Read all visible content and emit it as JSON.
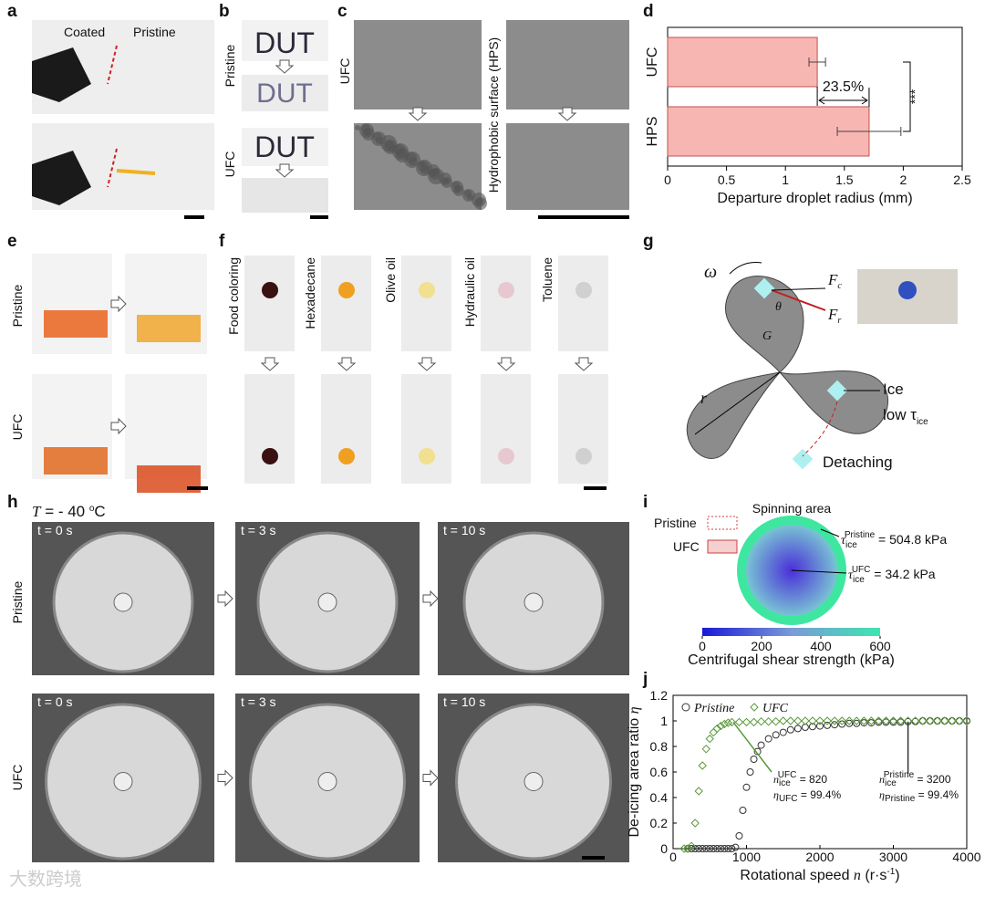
{
  "panel_labels": [
    "a",
    "b",
    "c",
    "d",
    "e",
    "f",
    "g",
    "h",
    "i",
    "j"
  ],
  "a": {
    "coated": "Coated",
    "pristine": "Pristine"
  },
  "b": {
    "rows": [
      "Pristine",
      "UFC"
    ],
    "text": "DUT"
  },
  "c": {
    "left": "UFC",
    "right": "Hydrophobic surface (HPS)"
  },
  "e": {
    "rows": [
      "Pristine",
      "UFC"
    ]
  },
  "f": {
    "liquids": [
      "Food coloring",
      "Hexadecane",
      "Olive oil",
      "Hydraulic oil",
      "Toluene"
    ]
  },
  "g": {
    "omega": "ω",
    "fc": [
      "F",
      "c"
    ],
    "fr": [
      "F",
      "r"
    ],
    "theta": "θ",
    "g": "G",
    "r": "r",
    "ice": "Ice",
    "low": [
      "low τ",
      "ice"
    ],
    "detaching": "Detaching"
  },
  "h": {
    "temperature": [
      "T",
      " = - 40 ",
      "o",
      "C"
    ],
    "rows": [
      "Pristine",
      "UFC"
    ],
    "times": [
      "t = 0 s",
      "t = 3 s",
      "t = 10 s"
    ]
  },
  "i": {
    "title": "Spinning area",
    "legend": [
      "Pristine",
      "UFC"
    ],
    "tau_pristine": [
      "τ",
      "ice",
      "Pristine",
      " = 504.8 kPa"
    ],
    "tau_ufc": [
      "τ",
      "ice",
      "UFC",
      " = 34.2 kPa"
    ]
  },
  "watermark": "大数跨境",
  "chart_data": [
    {
      "type": "bar",
      "orientation": "horizontal",
      "categories": [
        "UFC",
        "HPS"
      ],
      "values": [
        1.27,
        1.71
      ],
      "errors": [
        0.07,
        0.27
      ],
      "color": "#f8b6b3",
      "edge_color": "#c0504d",
      "xlim": [
        0,
        2.5
      ],
      "xticks": [
        0,
        0.5,
        1,
        1.5,
        2,
        2.5
      ],
      "xlabel": "Departure droplet radius (mm)",
      "annotations": [
        "23.5%",
        "***"
      ]
    },
    {
      "type": "colorbar",
      "xlim": [
        0,
        600
      ],
      "xticks": [
        0,
        200,
        400,
        600
      ],
      "xlabel": "Centrifugal shear strength (kPa)",
      "colors": [
        "#1a1ad6",
        "#7a9ad8",
        "#3ee6b0"
      ]
    },
    {
      "type": "scatter",
      "xlabel": [
        "Rotational speed ",
        "n",
        " (r·s",
        "-1",
        ")"
      ],
      "ylabel": [
        "De-icing area ratio ",
        "η"
      ],
      "xlim": [
        0,
        4000
      ],
      "xticks": [
        0,
        1000,
        2000,
        3000,
        4000
      ],
      "ylim": [
        0,
        1.2
      ],
      "yticks": [
        0,
        0.2,
        0.4,
        0.6,
        0.8,
        1,
        1.2
      ],
      "series": [
        {
          "name": "Pristine",
          "marker": "circle",
          "color": "#333333",
          "x": [
            200,
            250,
            300,
            350,
            400,
            450,
            500,
            550,
            600,
            650,
            700,
            750,
            800,
            850,
            900,
            950,
            1000,
            1050,
            1100,
            1150,
            1200,
            1300,
            1400,
            1500,
            1600,
            1700,
            1800,
            1900,
            2000,
            2100,
            2200,
            2300,
            2400,
            2500,
            2600,
            2700,
            2800,
            2900,
            3000,
            3100,
            3200,
            3300,
            3400,
            3500,
            3600,
            3700,
            3800,
            3900,
            4000
          ],
          "values": [
            0,
            0,
            0,
            0,
            0,
            0,
            0,
            0,
            0,
            0,
            0,
            0,
            0,
            0.01,
            0.1,
            0.3,
            0.48,
            0.6,
            0.7,
            0.76,
            0.81,
            0.86,
            0.89,
            0.91,
            0.93,
            0.94,
            0.95,
            0.955,
            0.96,
            0.965,
            0.97,
            0.975,
            0.98,
            0.98,
            0.985,
            0.985,
            0.99,
            0.99,
            0.99,
            0.99,
            0.994,
            0.995,
            1,
            1,
            1,
            1,
            1,
            1,
            1
          ]
        },
        {
          "name": "UFC",
          "marker": "diamond",
          "color": "#5a9a3a",
          "x": [
            150,
            200,
            250,
            300,
            350,
            400,
            450,
            500,
            550,
            600,
            650,
            700,
            750,
            800,
            900,
            1000,
            1100,
            1200,
            1300,
            1400,
            1500,
            1600,
            1700,
            1800,
            1900,
            2000,
            2100,
            2200,
            2300,
            2400,
            2500,
            2600,
            2700,
            2800,
            2900,
            3000,
            3100,
            3200,
            3300,
            3400,
            3500,
            3600,
            3700,
            3800,
            3900,
            4000
          ],
          "values": [
            0,
            0,
            0.02,
            0.2,
            0.45,
            0.65,
            0.78,
            0.86,
            0.91,
            0.94,
            0.96,
            0.975,
            0.985,
            0.99,
            0.99,
            0.99,
            0.99,
            0.995,
            0.995,
            0.995,
            1,
            1,
            1,
            1,
            1,
            1,
            1,
            1,
            1,
            1,
            1,
            1,
            1,
            1,
            1,
            1,
            1,
            1,
            1,
            1,
            1,
            1,
            1,
            1,
            1,
            1
          ]
        }
      ],
      "annotations": [
        [
          "n",
          "ice",
          "UFC",
          " = 820"
        ],
        [
          "η",
          "UFC",
          " = 99.4%"
        ],
        [
          "n",
          "ice",
          "Pristine",
          " = 3200"
        ],
        [
          "η",
          "Pristine",
          " = 99.4%"
        ]
      ]
    }
  ]
}
